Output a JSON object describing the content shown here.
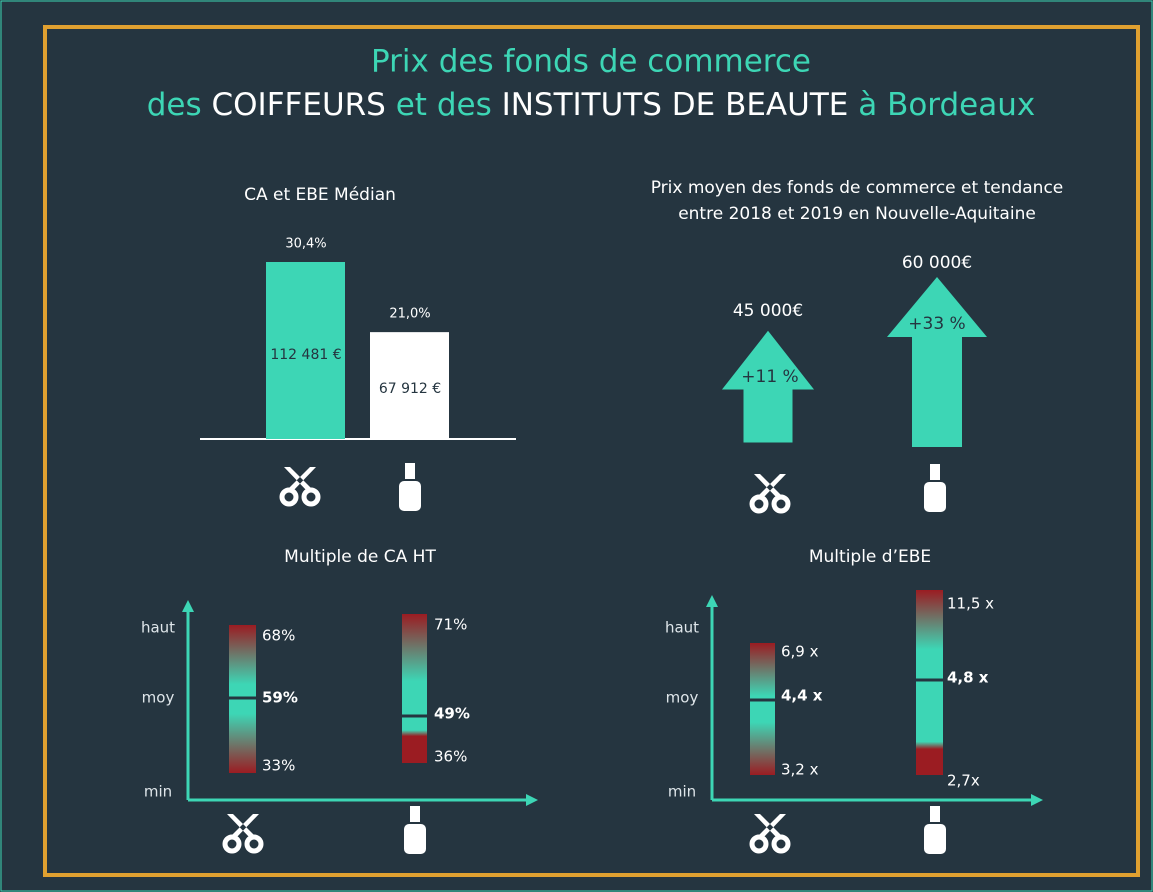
{
  "title": {
    "line1": "Prix des fonds de commerce",
    "line2": [
      "des",
      "COIFFEURS",
      "et des",
      "INSTITUTS DE BEAUTE",
      "à Bordeaux"
    ]
  },
  "ca_ebe": {
    "title": "CA et EBE Médian",
    "bars": [
      {
        "value": 112481,
        "label": "112 481 €",
        "pct": "30,4%"
      },
      {
        "value": 67912,
        "label": "67 912 €",
        "pct": "21,0%"
      }
    ]
  },
  "prix": {
    "title": [
      "Prix moyen des fonds de commerce et tendance",
      "entre 2018 et 2019 en Nouvelle-Aquitaine"
    ],
    "arrows": [
      {
        "price": "45 000€",
        "change": "+11 %"
      },
      {
        "price": "60 000€",
        "change": "+33 %"
      }
    ]
  },
  "multiple_ca": {
    "title": "Multiple de CA HT",
    "axis": [
      "haut",
      "moy",
      "min"
    ],
    "bars": [
      {
        "high": "68%",
        "mid": "59%",
        "low": "33%"
      },
      {
        "high": "71%",
        "mid": "49%",
        "low": "36%"
      }
    ]
  },
  "multiple_ebe": {
    "title": "Multiple d’EBE",
    "axis": [
      "haut",
      "moy",
      "min"
    ],
    "bars": [
      {
        "high": "6,9 x",
        "mid": "4,4 x",
        "low": "3,2 x"
      },
      {
        "high": "11,5 x",
        "mid": "4,8 x",
        "low": "2,7x"
      }
    ]
  }
}
